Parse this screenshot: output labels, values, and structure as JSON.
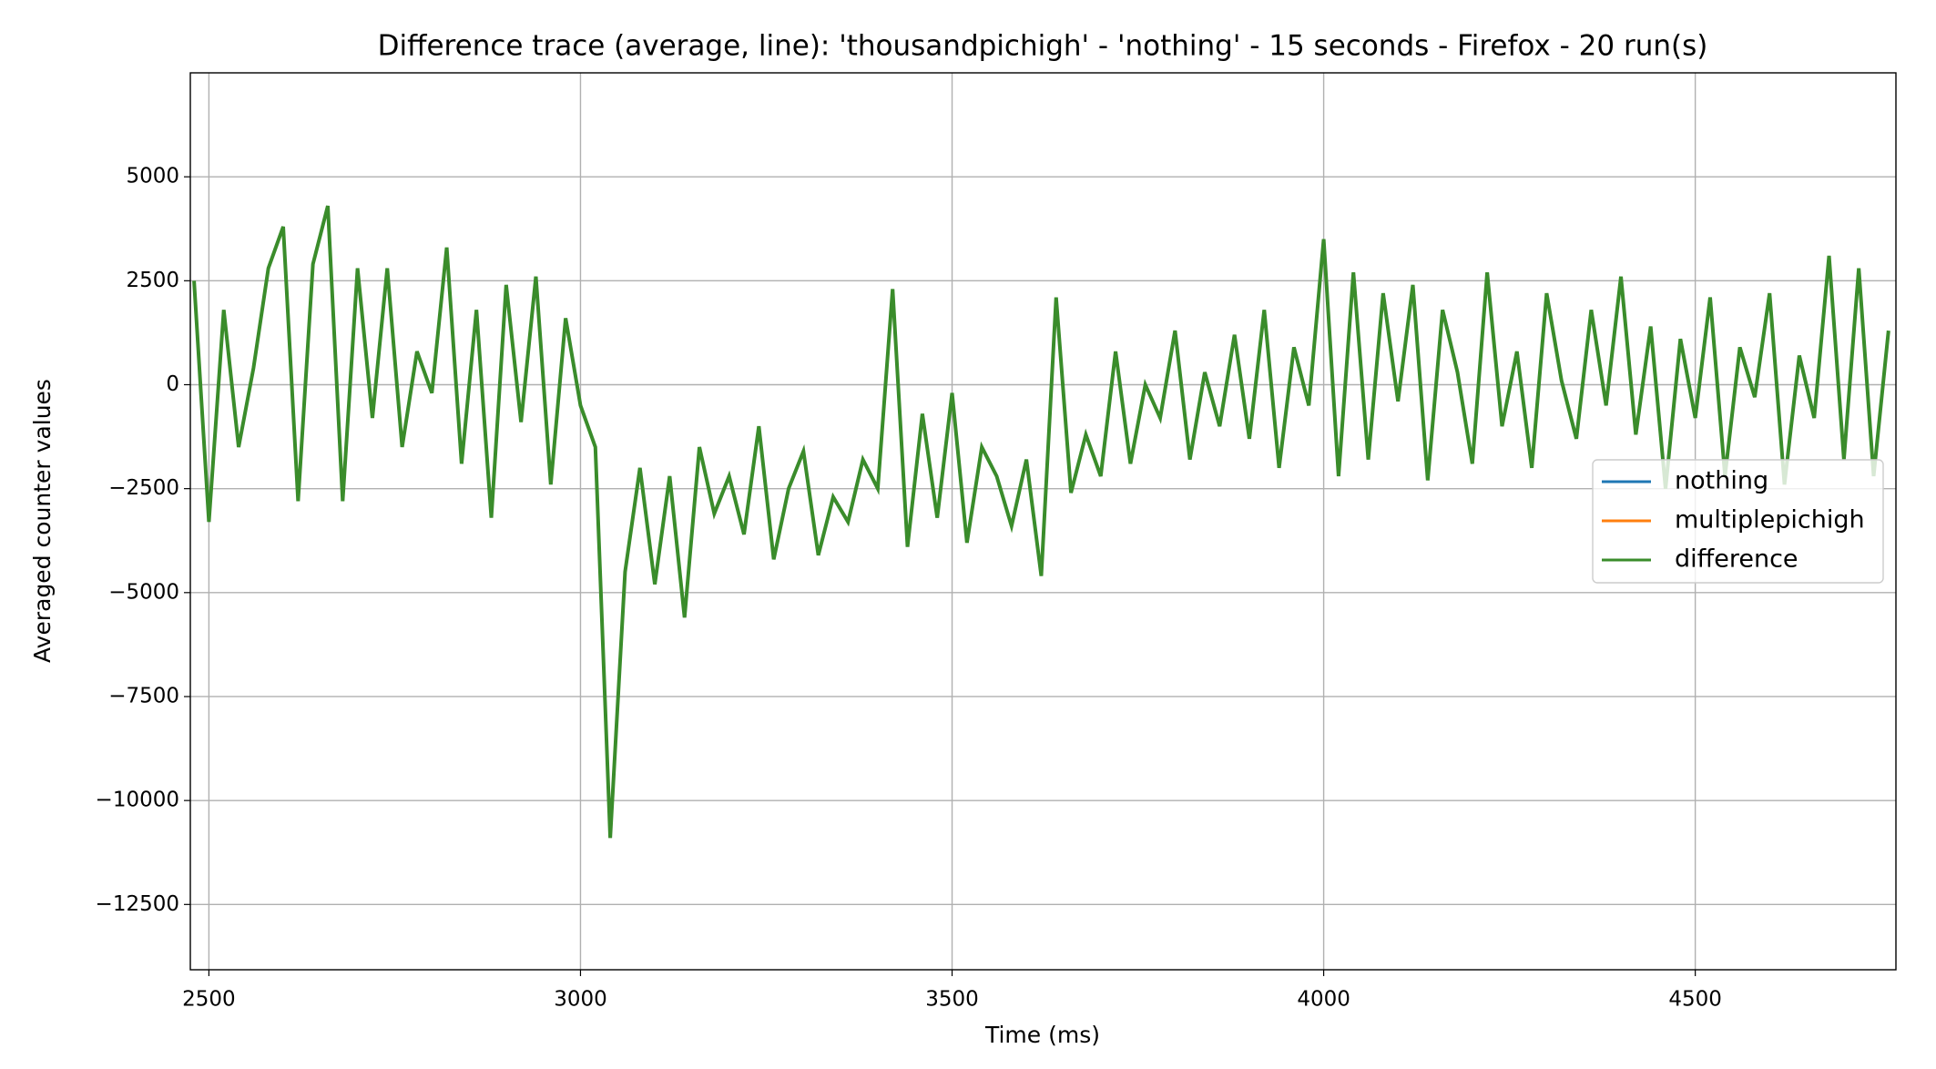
{
  "chart_data": {
    "type": "line",
    "title": "Difference trace (average, line): 'thousandpichigh' - 'nothing' - 15 seconds - Firefox - 20 run(s)",
    "xlabel": "Time (ms)",
    "ylabel": "Averaged counter values",
    "xlim": [
      2475,
      4770
    ],
    "ylim": [
      -14070,
      7500
    ],
    "xticks": [
      2500,
      3000,
      3500,
      4000,
      4500
    ],
    "yticks": [
      {
        "value": -12500,
        "label": "−12500"
      },
      {
        "value": -10000,
        "label": "−10000"
      },
      {
        "value": -7500,
        "label": "−7500"
      },
      {
        "value": -5000,
        "label": "−5000"
      },
      {
        "value": -2500,
        "label": "−2500"
      },
      0,
      2500,
      5000
    ],
    "grid": true,
    "legend": "center right",
    "x": [
      2480,
      2500,
      2520,
      2540,
      2560,
      2580,
      2600,
      2620,
      2640,
      2660,
      2680,
      2700,
      2720,
      2740,
      2760,
      2780,
      2800,
      2820,
      2840,
      2860,
      2880,
      2900,
      2920,
      2940,
      2960,
      2980,
      3000,
      3020,
      3040,
      3060,
      3080,
      3100,
      3120,
      3140,
      3160,
      3180,
      3200,
      3220,
      3240,
      3260,
      3280,
      3300,
      3320,
      3340,
      3360,
      3380,
      3400,
      3420,
      3440,
      3460,
      3480,
      3500,
      3520,
      3540,
      3560,
      3580,
      3600,
      3620,
      3640,
      3660,
      3680,
      3700,
      3720,
      3740,
      3760,
      3780,
      3800,
      3820,
      3840,
      3860,
      3880,
      3900,
      3920,
      3940,
      3960,
      3980,
      4000,
      4020,
      4040,
      4060,
      4080,
      4100,
      4120,
      4140,
      4160,
      4180,
      4200,
      4220,
      4240,
      4260,
      4280,
      4300,
      4320,
      4340,
      4360,
      4380,
      4400,
      4420,
      4440,
      4460,
      4480,
      4500,
      4520,
      4540,
      4560,
      4580,
      4600,
      4620,
      4640,
      4660,
      4680,
      4700,
      4720,
      4740,
      4760
    ],
    "series": [
      {
        "name": "nothing",
        "color": "#1f77b4",
        "values": [
          null,
          null,
          null,
          null,
          null,
          null,
          null,
          null,
          null,
          null,
          null,
          null,
          null,
          null,
          null,
          null,
          null,
          null,
          null,
          null,
          null,
          null,
          null,
          null,
          null,
          null,
          null,
          null,
          null,
          null,
          null,
          null,
          null,
          null,
          null,
          null,
          null,
          null,
          null,
          null,
          null,
          null,
          null,
          null,
          null,
          null,
          null,
          null,
          null,
          null,
          null,
          null,
          null,
          null,
          null,
          null,
          null,
          null,
          null,
          null,
          null,
          null,
          null,
          null,
          null,
          null,
          null,
          null,
          null,
          null,
          null,
          null,
          null,
          null,
          null,
          null,
          null,
          null,
          null,
          null,
          null,
          null,
          null,
          null,
          null,
          null,
          null,
          null,
          null,
          null,
          null,
          null,
          null,
          null,
          null,
          null,
          null,
          null,
          null,
          null,
          null,
          null,
          null,
          null,
          null,
          null,
          null,
          null,
          null,
          null,
          null,
          null,
          null,
          null,
          null
        ]
      },
      {
        "name": "multiplepichigh",
        "color": "#ff7f0e",
        "values": [
          null,
          null,
          null,
          null,
          null,
          null,
          null,
          null,
          null,
          null,
          null,
          null,
          null,
          null,
          null,
          null,
          null,
          null,
          null,
          null,
          null,
          null,
          null,
          null,
          null,
          null,
          null,
          null,
          null,
          null,
          null,
          null,
          null,
          null,
          null,
          null,
          null,
          null,
          null,
          null,
          null,
          null,
          null,
          null,
          null,
          null,
          null,
          null,
          null,
          null,
          null,
          null,
          null,
          null,
          null,
          null,
          null,
          null,
          null,
          null,
          null,
          null,
          null,
          null,
          null,
          null,
          null,
          null,
          null,
          null,
          null,
          null,
          null,
          null,
          null,
          null,
          null,
          null,
          null,
          null,
          null,
          null,
          null,
          null,
          null,
          null,
          null,
          null,
          null,
          null,
          null,
          null,
          null,
          null,
          null,
          null,
          null,
          null,
          null,
          null,
          null,
          null,
          null,
          null,
          null,
          null,
          null,
          null,
          null,
          null,
          null,
          null,
          null,
          null,
          null
        ]
      },
      {
        "name": "difference",
        "color": "#3a8c2b",
        "values": [
          2500,
          -3300,
          1800,
          -1500,
          400,
          2800,
          3800,
          -2800,
          2900,
          4300,
          -2800,
          2800,
          -800,
          2800,
          -1500,
          800,
          -200,
          3300,
          -1900,
          1800,
          -3200,
          2400,
          -900,
          2600,
          -2400,
          1600,
          -500,
          -1500,
          -10900,
          -4500,
          -2000,
          -4800,
          -2200,
          -5600,
          -1500,
          -3100,
          -2200,
          -3600,
          -1000,
          -4200,
          -2500,
          -1600,
          -4100,
          -2700,
          -3300,
          -1800,
          -2500,
          2300,
          -3900,
          -700,
          -3200,
          -200,
          -3800,
          -1500,
          -2200,
          -3400,
          -1800,
          -4600,
          2100,
          -2600,
          -1200,
          -2200,
          800,
          -1900,
          0,
          -800,
          1300,
          -1800,
          300,
          -1000,
          1200,
          -1300,
          1800,
          -2000,
          900,
          -500,
          3500,
          -2200,
          2700,
          -1800,
          2200,
          -400,
          2400,
          -2300,
          1800,
          300,
          -1900,
          2700,
          -1000,
          800,
          -2000,
          2200,
          100,
          -1300,
          1800,
          -500,
          2600,
          -1200,
          1400,
          -2500,
          1100,
          -800,
          2100,
          -2200,
          900,
          -300,
          2200,
          -2400,
          700,
          -800,
          3100,
          -1800,
          2800,
          -2200,
          1300
        ]
      }
    ]
  }
}
